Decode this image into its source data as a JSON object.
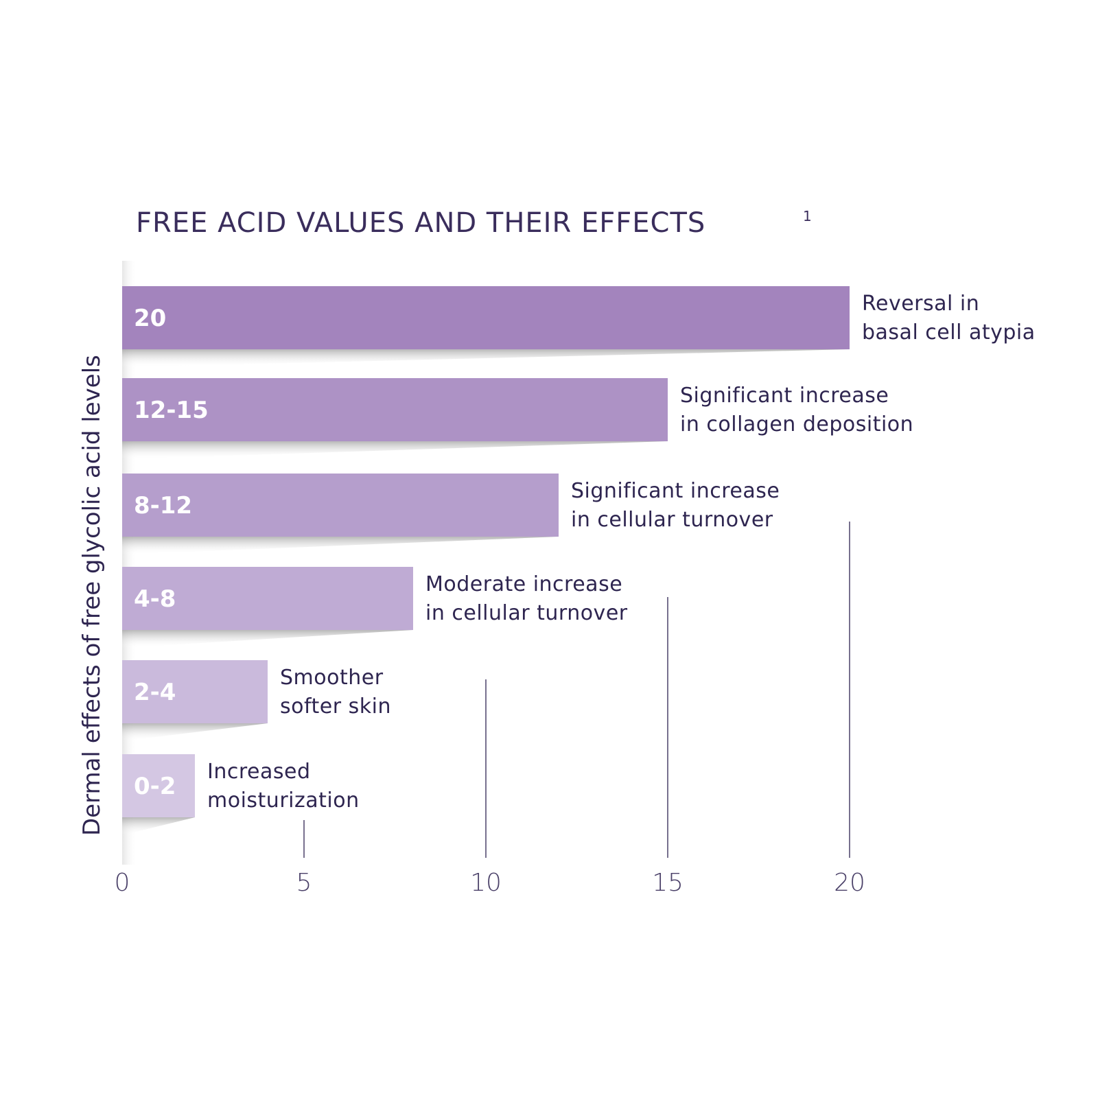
{
  "chart_data": {
    "type": "bar",
    "orientation": "horizontal",
    "title": "FREE ACID VALUES AND THEIR EFFECTS",
    "title_superscript": "1",
    "xlabel": "",
    "ylabel": "Dermal effects of free glycolic acid levels",
    "xlim": [
      0,
      20
    ],
    "xticks": [
      "0",
      "5",
      "10",
      "15",
      "20"
    ],
    "bars": [
      {
        "label": "20",
        "value": 20,
        "effect": [
          "Reversal in",
          "basal cell atypia"
        ],
        "color": "#a384bd"
      },
      {
        "label": "12-15",
        "value": 15,
        "effect": [
          "Significant increase",
          "in collagen deposition"
        ],
        "color": "#ad92c5"
      },
      {
        "label": "8-12",
        "value": 12,
        "effect": [
          "Significant increase",
          "in cellular turnover"
        ],
        "color": "#b59ecc"
      },
      {
        "label": "4-8",
        "value": 8,
        "effect": [
          "Moderate increase",
          "in cellular turnover"
        ],
        "color": "#bfabd4"
      },
      {
        "label": "2-4",
        "value": 4,
        "effect": [
          "Smoother",
          "softer skin"
        ],
        "color": "#cabadc"
      },
      {
        "label": "0-2",
        "value": 2,
        "effect": [
          "Increased",
          "moisturization"
        ],
        "color": "#d4c7e3"
      }
    ]
  }
}
